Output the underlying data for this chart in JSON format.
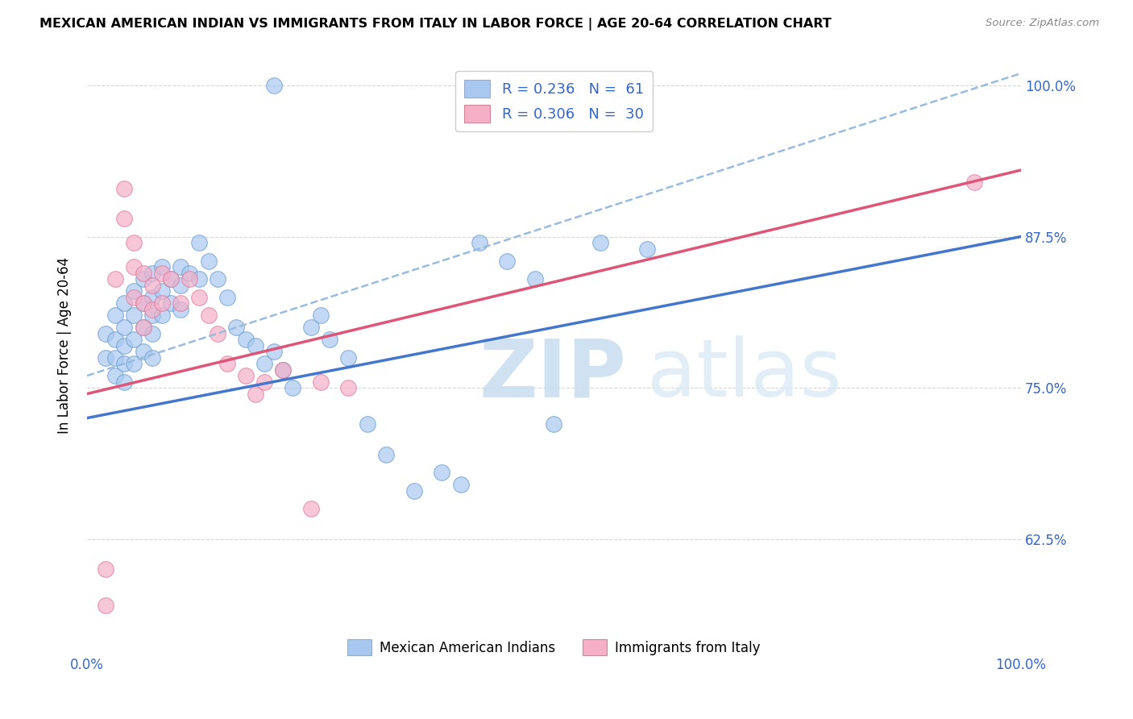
{
  "title": "MEXICAN AMERICAN INDIAN VS IMMIGRANTS FROM ITALY IN LABOR FORCE | AGE 20-64 CORRELATION CHART",
  "source": "Source: ZipAtlas.com",
  "ylabel": "In Labor Force | Age 20-64",
  "xlim": [
    0.0,
    1.0
  ],
  "ylim": [
    0.545,
    1.025
  ],
  "ytick_positions": [
    0.625,
    0.75,
    0.875,
    1.0
  ],
  "ytick_labels": [
    "62.5%",
    "75.0%",
    "87.5%",
    "100.0%"
  ],
  "legend_R_blue": "0.236",
  "legend_N_blue": "61",
  "legend_R_pink": "0.306",
  "legend_N_pink": "30",
  "blue_color": "#a8c8f0",
  "blue_edge_color": "#6699cc",
  "pink_color": "#f5b0c8",
  "pink_edge_color": "#dd7799",
  "blue_line_color": "#4477cc",
  "pink_line_color": "#dd5577",
  "dashed_line_color": "#99bbdd",
  "grid_color": "#cccccc",
  "blue_scatter_x": [
    0.02,
    0.02,
    0.03,
    0.03,
    0.03,
    0.03,
    0.04,
    0.04,
    0.04,
    0.04,
    0.04,
    0.05,
    0.05,
    0.05,
    0.05,
    0.06,
    0.06,
    0.06,
    0.06,
    0.07,
    0.07,
    0.07,
    0.07,
    0.07,
    0.08,
    0.08,
    0.08,
    0.09,
    0.09,
    0.1,
    0.1,
    0.1,
    0.11,
    0.12,
    0.12,
    0.13,
    0.14,
    0.15,
    0.16,
    0.17,
    0.18,
    0.19,
    0.2,
    0.21,
    0.22,
    0.24,
    0.25,
    0.26,
    0.28,
    0.3,
    0.32,
    0.35,
    0.38,
    0.4,
    0.42,
    0.45,
    0.48,
    0.5,
    0.55,
    0.6,
    0.2
  ],
  "blue_scatter_y": [
    0.795,
    0.775,
    0.81,
    0.79,
    0.775,
    0.76,
    0.82,
    0.8,
    0.785,
    0.77,
    0.755,
    0.83,
    0.81,
    0.79,
    0.77,
    0.84,
    0.82,
    0.8,
    0.78,
    0.845,
    0.825,
    0.81,
    0.795,
    0.775,
    0.85,
    0.83,
    0.81,
    0.84,
    0.82,
    0.85,
    0.835,
    0.815,
    0.845,
    0.87,
    0.84,
    0.855,
    0.84,
    0.825,
    0.8,
    0.79,
    0.785,
    0.77,
    0.78,
    0.765,
    0.75,
    0.8,
    0.81,
    0.79,
    0.775,
    0.72,
    0.695,
    0.665,
    0.68,
    0.67,
    0.87,
    0.855,
    0.84,
    0.72,
    0.87,
    0.865,
    1.0
  ],
  "pink_scatter_x": [
    0.02,
    0.02,
    0.03,
    0.04,
    0.04,
    0.05,
    0.05,
    0.05,
    0.06,
    0.06,
    0.06,
    0.07,
    0.07,
    0.08,
    0.08,
    0.09,
    0.1,
    0.11,
    0.12,
    0.13,
    0.14,
    0.15,
    0.17,
    0.18,
    0.19,
    0.21,
    0.24,
    0.25,
    0.28,
    0.95
  ],
  "pink_scatter_y": [
    0.57,
    0.6,
    0.84,
    0.915,
    0.89,
    0.87,
    0.85,
    0.825,
    0.845,
    0.82,
    0.8,
    0.835,
    0.815,
    0.845,
    0.82,
    0.84,
    0.82,
    0.84,
    0.825,
    0.81,
    0.795,
    0.77,
    0.76,
    0.745,
    0.755,
    0.765,
    0.65,
    0.755,
    0.75,
    0.92
  ],
  "blue_trend": [
    0.725,
    0.875
  ],
  "pink_trend": [
    0.745,
    0.93
  ],
  "dashed_trend": [
    0.76,
    1.01
  ]
}
